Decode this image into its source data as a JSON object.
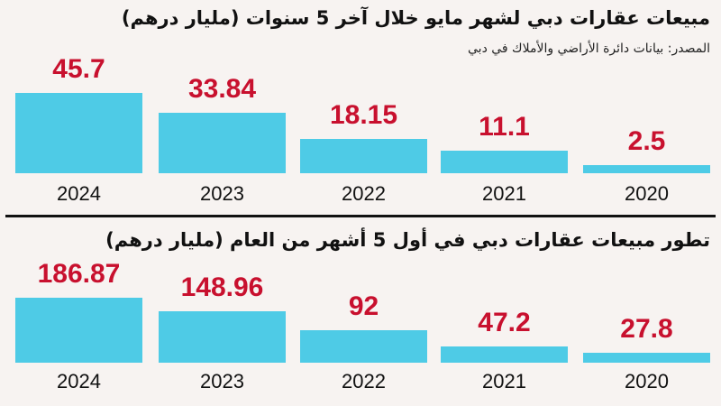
{
  "chart_data": [
    {
      "type": "bar",
      "title": "مبيعات عقارات دبي لشهر مايو خلال آخر 5 سنوات (مليار درهم)",
      "subtitle": "المصدر: بيانات دائرة الأراضي والأملاك في دبي",
      "categories": [
        "2024",
        "2023",
        "2022",
        "2021",
        "2020"
      ],
      "values": [
        45.7,
        33.84,
        18.15,
        11.1,
        2.5
      ],
      "value_labels": [
        "45.7",
        "33.84",
        "18.15",
        "11.1",
        "2.5"
      ],
      "bar_color": "#4ecbe6",
      "label_color": "#c8102e"
    },
    {
      "type": "bar",
      "title": "تطور مبيعات عقارات دبي في أول 5 أشهر من العام  (مليار درهم)",
      "categories": [
        "2024",
        "2023",
        "2022",
        "2021",
        "2020"
      ],
      "values": [
        186.87,
        148.96,
        92,
        47.2,
        27.8
      ],
      "value_labels": [
        "186.87",
        "148.96",
        "92",
        "47.2",
        "27.8"
      ],
      "bar_color": "#4ecbe6",
      "label_color": "#c8102e"
    }
  ]
}
